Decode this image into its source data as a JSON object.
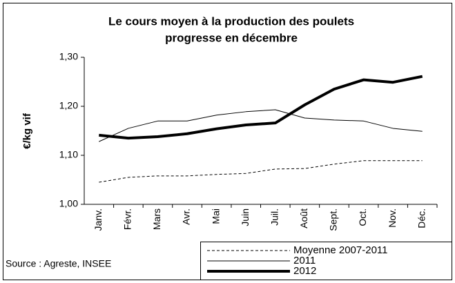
{
  "chart_data": {
    "type": "line",
    "title": [
      "Le cours moyen à la production des poulets",
      "progresse en décembre"
    ],
    "y_label": "€/kg vif",
    "source": "Source : Agreste, INSEE",
    "categories": [
      "Janv.",
      "Févr.",
      "Mars",
      "Avr.",
      "Mai",
      "Juin",
      "Juil.",
      "Août",
      "Sept.",
      "Oct.",
      "Nov.",
      "Déc."
    ],
    "series": [
      {
        "name": "Moyenne 2007-2011",
        "color": "#000000",
        "dash": "4,3",
        "width": 1,
        "values": [
          1.045,
          1.055,
          1.058,
          1.058,
          1.061,
          1.063,
          1.072,
          1.073,
          1.082,
          1.089,
          1.089,
          1.089
        ]
      },
      {
        "name": "2011",
        "color": "#000000",
        "width": 1,
        "values": [
          1.128,
          1.155,
          1.17,
          1.17,
          1.182,
          1.189,
          1.193,
          1.176,
          1.172,
          1.17,
          1.155,
          1.149
        ]
      },
      {
        "name": "2012",
        "color": "#000000",
        "width": 4,
        "values": [
          1.141,
          1.135,
          1.138,
          1.144,
          1.154,
          1.162,
          1.166,
          1.203,
          1.235,
          1.254,
          1.249,
          1.261
        ]
      }
    ],
    "ylim": [
      1.0,
      1.3
    ],
    "yticks": [
      {
        "value": 1.0,
        "label": "1,00"
      },
      {
        "value": 1.1,
        "label": "1,10"
      },
      {
        "value": 1.2,
        "label": "1,20"
      },
      {
        "value": 1.3,
        "label": "1,30"
      }
    ],
    "grid": false
  }
}
